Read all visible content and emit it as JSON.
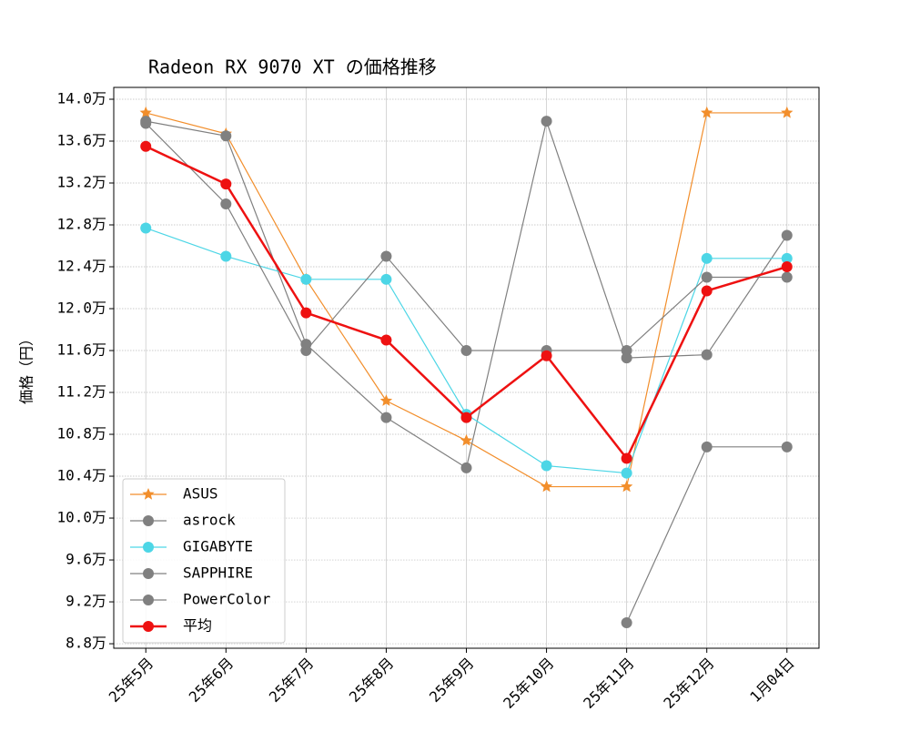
{
  "chart_data": {
    "type": "line",
    "title": "Radeon RX 9070 XT の価格推移",
    "y_label": "価格（円）",
    "categories": [
      "25年5月",
      "25年6月",
      "25年7月",
      "25年8月",
      "25年9月",
      "25年10月",
      "25年11月",
      "25年12月",
      "1月04日"
    ],
    "series": [
      {
        "name": "ASUS",
        "color": "#f28e2b",
        "marker": "star",
        "linewidth": 1.2,
        "values": [
          138700,
          136700,
          122800,
          111200,
          107400,
          103000,
          103000,
          138700,
          138700
        ]
      },
      {
        "name": "asrock",
        "color": "#808080",
        "marker": "circle",
        "linewidth": 1.2,
        "values": [
          137900,
          136500,
          116600,
          109600,
          104800,
          137900,
          115300,
          115600,
          127000
        ]
      },
      {
        "name": "GIGABYTE",
        "color": "#4dd6e6",
        "marker": "circle",
        "linewidth": 1.2,
        "values": [
          127700,
          125000,
          122800,
          122800,
          109900,
          105000,
          104300,
          124800,
          124800
        ]
      },
      {
        "name": "SAPPHIRE",
        "color": "#808080",
        "marker": "circle",
        "linewidth": 1.2,
        "values": [
          137700,
          130000,
          116000,
          125000,
          116000,
          116000,
          116000,
          123000,
          123000
        ]
      },
      {
        "name": "PowerColor",
        "color": "#808080",
        "marker": "circle",
        "linewidth": 1.2,
        "values": [
          null,
          null,
          null,
          null,
          null,
          null,
          90000,
          106800,
          106800
        ]
      },
      {
        "name": "平均",
        "color": "#ee1111",
        "marker": "circle",
        "linewidth": 2.5,
        "values": [
          135500,
          131900,
          119600,
          117000,
          109600,
          115500,
          105700,
          121700,
          124000
        ]
      }
    ],
    "ylim": [
      87570,
      141130
    ],
    "yticks": [
      {
        "value": 88000,
        "label": "8.8万"
      },
      {
        "value": 92000,
        "label": "9.2万"
      },
      {
        "value": 96000,
        "label": "9.6万"
      },
      {
        "value": 100000,
        "label": "10.0万"
      },
      {
        "value": 104000,
        "label": "10.4万"
      },
      {
        "value": 108000,
        "label": "10.8万"
      },
      {
        "value": 112000,
        "label": "11.2万"
      },
      {
        "value": 116000,
        "label": "11.6万"
      },
      {
        "value": 120000,
        "label": "12.0万"
      },
      {
        "value": 124000,
        "label": "12.4万"
      },
      {
        "value": 128000,
        "label": "12.8万"
      },
      {
        "value": 132000,
        "label": "13.2万"
      },
      {
        "value": 136000,
        "label": "13.6万"
      },
      {
        "value": 140000,
        "label": "14.0万"
      }
    ],
    "grid": true,
    "legend": "lower left"
  }
}
